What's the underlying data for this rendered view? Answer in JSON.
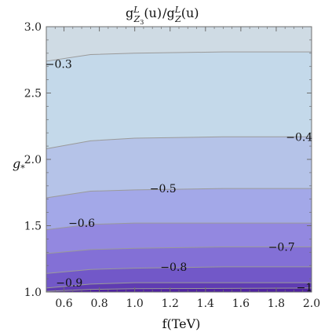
{
  "chart_data": {
    "type": "contour",
    "title": {
      "main": "g",
      "sup1": "L",
      "sub1": "Z",
      "sub1b": "3",
      "arg1": "(u)",
      "slash": "/",
      "main2": "g",
      "sup2": "L",
      "sub2": "Z",
      "arg2": "(u)"
    },
    "xlabel": "f(TeV)",
    "ylabel": {
      "base": "g",
      "sub": "*"
    },
    "xlim": [
      0.5,
      2.0
    ],
    "ylim": [
      1.0,
      3.0
    ],
    "x_ticks": [
      "0.6",
      "0.8",
      "1.0",
      "1.2",
      "1.4",
      "1.6",
      "1.8",
      "2.0"
    ],
    "y_ticks": [
      "1.0",
      "1.5",
      "2.0",
      "2.5",
      "3.0"
    ],
    "contour_lines": [
      {
        "level": "-0.3",
        "x": [
          0.5,
          0.75,
          1.0,
          1.5,
          2.0
        ],
        "y": [
          2.74,
          2.79,
          2.8,
          2.81,
          2.81
        ]
      },
      {
        "level": "-0.4",
        "x": [
          0.5,
          0.75,
          1.0,
          1.5,
          2.0
        ],
        "y": [
          2.08,
          2.14,
          2.16,
          2.17,
          2.17
        ]
      },
      {
        "level": "-0.5",
        "x": [
          0.5,
          0.75,
          1.0,
          1.5,
          2.0
        ],
        "y": [
          1.71,
          1.76,
          1.77,
          1.78,
          1.78
        ]
      },
      {
        "level": "-0.6",
        "x": [
          0.5,
          0.75,
          1.0,
          1.5,
          2.0
        ],
        "y": [
          1.47,
          1.51,
          1.52,
          1.52,
          1.52
        ]
      },
      {
        "level": "-0.7",
        "x": [
          0.5,
          0.75,
          1.0,
          1.5,
          2.0
        ],
        "y": [
          1.29,
          1.32,
          1.33,
          1.34,
          1.34
        ]
      },
      {
        "level": "-0.8",
        "x": [
          0.5,
          0.75,
          1.0,
          1.5,
          2.0
        ],
        "y": [
          1.14,
          1.17,
          1.18,
          1.19,
          1.19
        ]
      },
      {
        "level": "-0.9",
        "x": [
          0.5,
          0.75,
          1.0,
          1.5,
          2.0
        ],
        "y": [
          1.03,
          1.06,
          1.07,
          1.07,
          1.07
        ]
      }
    ],
    "contour_labels": [
      {
        "text": "-0.3",
        "x": 0.57,
        "y": 2.72
      },
      {
        "text": "-0.4",
        "x": 1.93,
        "y": 2.17
      },
      {
        "text": "-0.5",
        "x": 1.16,
        "y": 1.78
      },
      {
        "text": "-0.6",
        "x": 0.7,
        "y": 1.52
      },
      {
        "text": "-0.7",
        "x": 1.83,
        "y": 1.34
      },
      {
        "text": "-0.8",
        "x": 1.22,
        "y": 1.19
      },
      {
        "text": "-0.9",
        "x": 0.63,
        "y": 1.07
      },
      {
        "text": "-1",
        "x": 1.96,
        "y": 1.035
      }
    ],
    "colors": {
      "band_top": "#cfdbe4",
      "bands": [
        "#c4d9ea",
        "#b5c3e8",
        "#a3a8e8",
        "#9388e0",
        "#8370d6",
        "#7258c8",
        "#5f3cb2",
        "#4f22a0"
      ],
      "contour_line": "#9a9a9a",
      "frame": "#6f6f6f"
    }
  }
}
